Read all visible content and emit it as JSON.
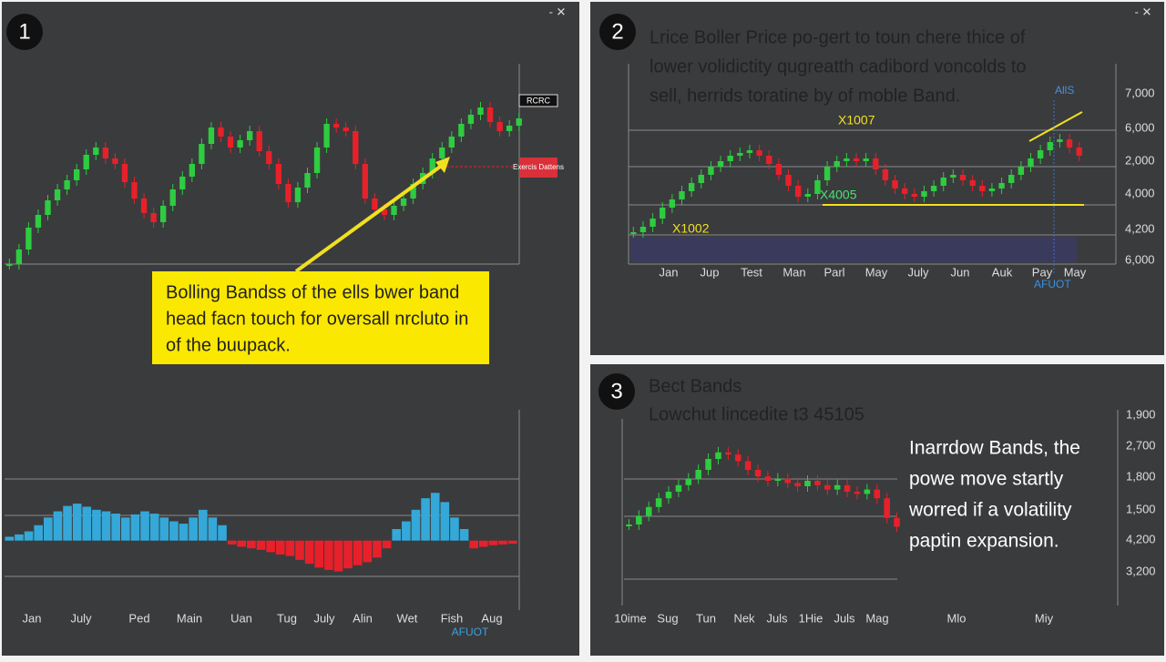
{
  "panels": [
    {
      "number": "1",
      "controls": "- ✕",
      "tags": [
        "RCRC",
        "Exercis Dattens"
      ],
      "callout": [
        "Bolling Bandss of the ells bwer band",
        "head facn touch for oversall nrcluto in",
        "of the buupack."
      ],
      "price": {
        "ylim": [
          0,
          100
        ],
        "values": [
          0,
          8,
          20,
          27,
          35,
          41,
          46,
          52,
          60,
          64,
          58,
          55,
          45,
          36,
          28,
          23,
          32,
          41,
          48,
          55,
          66,
          75,
          70,
          64,
          68,
          73,
          62,
          55,
          44,
          34,
          42,
          50,
          64,
          77,
          75,
          73,
          55,
          36,
          30,
          27,
          32,
          36,
          44,
          50,
          58,
          64,
          70,
          77,
          82,
          86,
          78,
          73,
          76,
          80
        ]
      },
      "histogram": {
        "ylim": [
          -50,
          80
        ],
        "values": [
          5,
          8,
          12,
          20,
          30,
          38,
          45,
          48,
          44,
          40,
          38,
          35,
          30,
          34,
          38,
          35,
          30,
          25,
          22,
          30,
          40,
          30,
          20,
          -5,
          -8,
          -10,
          -12,
          -15,
          -18,
          -20,
          -25,
          -30,
          -35,
          -38,
          -40,
          -36,
          -32,
          -28,
          -22,
          -10,
          15,
          25,
          40,
          55,
          62,
          50,
          30,
          15,
          -10,
          -8,
          -6,
          -5,
          -4
        ]
      },
      "x_labels": [
        "Jan",
        "July",
        "Ped",
        "Main",
        "Uan",
        "Tug",
        "July",
        "Alin",
        "Wet",
        "Fish",
        "Aug"
      ],
      "x_note": "AFUOT"
    },
    {
      "number": "2",
      "controls": "- ✕",
      "title": [
        "Lrice Boller Price po-gert to toun chere thice of",
        "lower volidictity qugreatth cadibord voncolds to",
        "sell,  herrids toratine by of moble Band."
      ],
      "annotations": [
        "X1007",
        "X4005",
        "X1002",
        "AllS",
        "AFUOT"
      ],
      "price": {
        "ylim": [
          0,
          100
        ],
        "values": [
          10,
          14,
          20,
          28,
          34,
          40,
          46,
          52,
          58,
          62,
          66,
          68,
          70,
          66,
          60,
          52,
          44,
          36,
          38,
          48,
          58,
          62,
          64,
          62,
          64,
          56,
          48,
          42,
          38,
          36,
          40,
          44,
          50,
          52,
          48,
          44,
          40,
          42,
          46,
          52,
          58,
          64,
          70,
          76,
          78,
          72,
          66
        ]
      },
      "y_labels": [
        "7,000",
        "6,000",
        "2,000",
        "4,000",
        "4,200",
        "6,000"
      ],
      "x_labels": [
        "Jan",
        "Jup",
        "Test",
        "Man",
        "Parl",
        "May",
        "July",
        "Jun",
        "Auk",
        "Pay",
        "May"
      ]
    },
    {
      "number": "3",
      "title": "Bect Bands",
      "subtitle": "Lowchut lincedite t3 45105",
      "callout": [
        "Inarrdow Bands, the",
        "powe move startly",
        "worred if a volatility",
        "paptin expansion."
      ],
      "price": {
        "ylim": [
          0,
          100
        ],
        "values": [
          20,
          28,
          36,
          44,
          50,
          56,
          62,
          70,
          80,
          86,
          84,
          78,
          70,
          64,
          60,
          62,
          58,
          55,
          60,
          56,
          52,
          56,
          50,
          48,
          52,
          44,
          26,
          18
        ]
      },
      "y_labels": [
        "1,900",
        "2,700",
        "1,800",
        "1,500",
        "4,200",
        "3,200"
      ],
      "x_labels": [
        "10ime",
        "Sug",
        "Tun",
        "Nek",
        "Juls",
        "1Hie",
        "Juls",
        "Mag",
        "Mlo",
        "Miy"
      ]
    }
  ]
}
